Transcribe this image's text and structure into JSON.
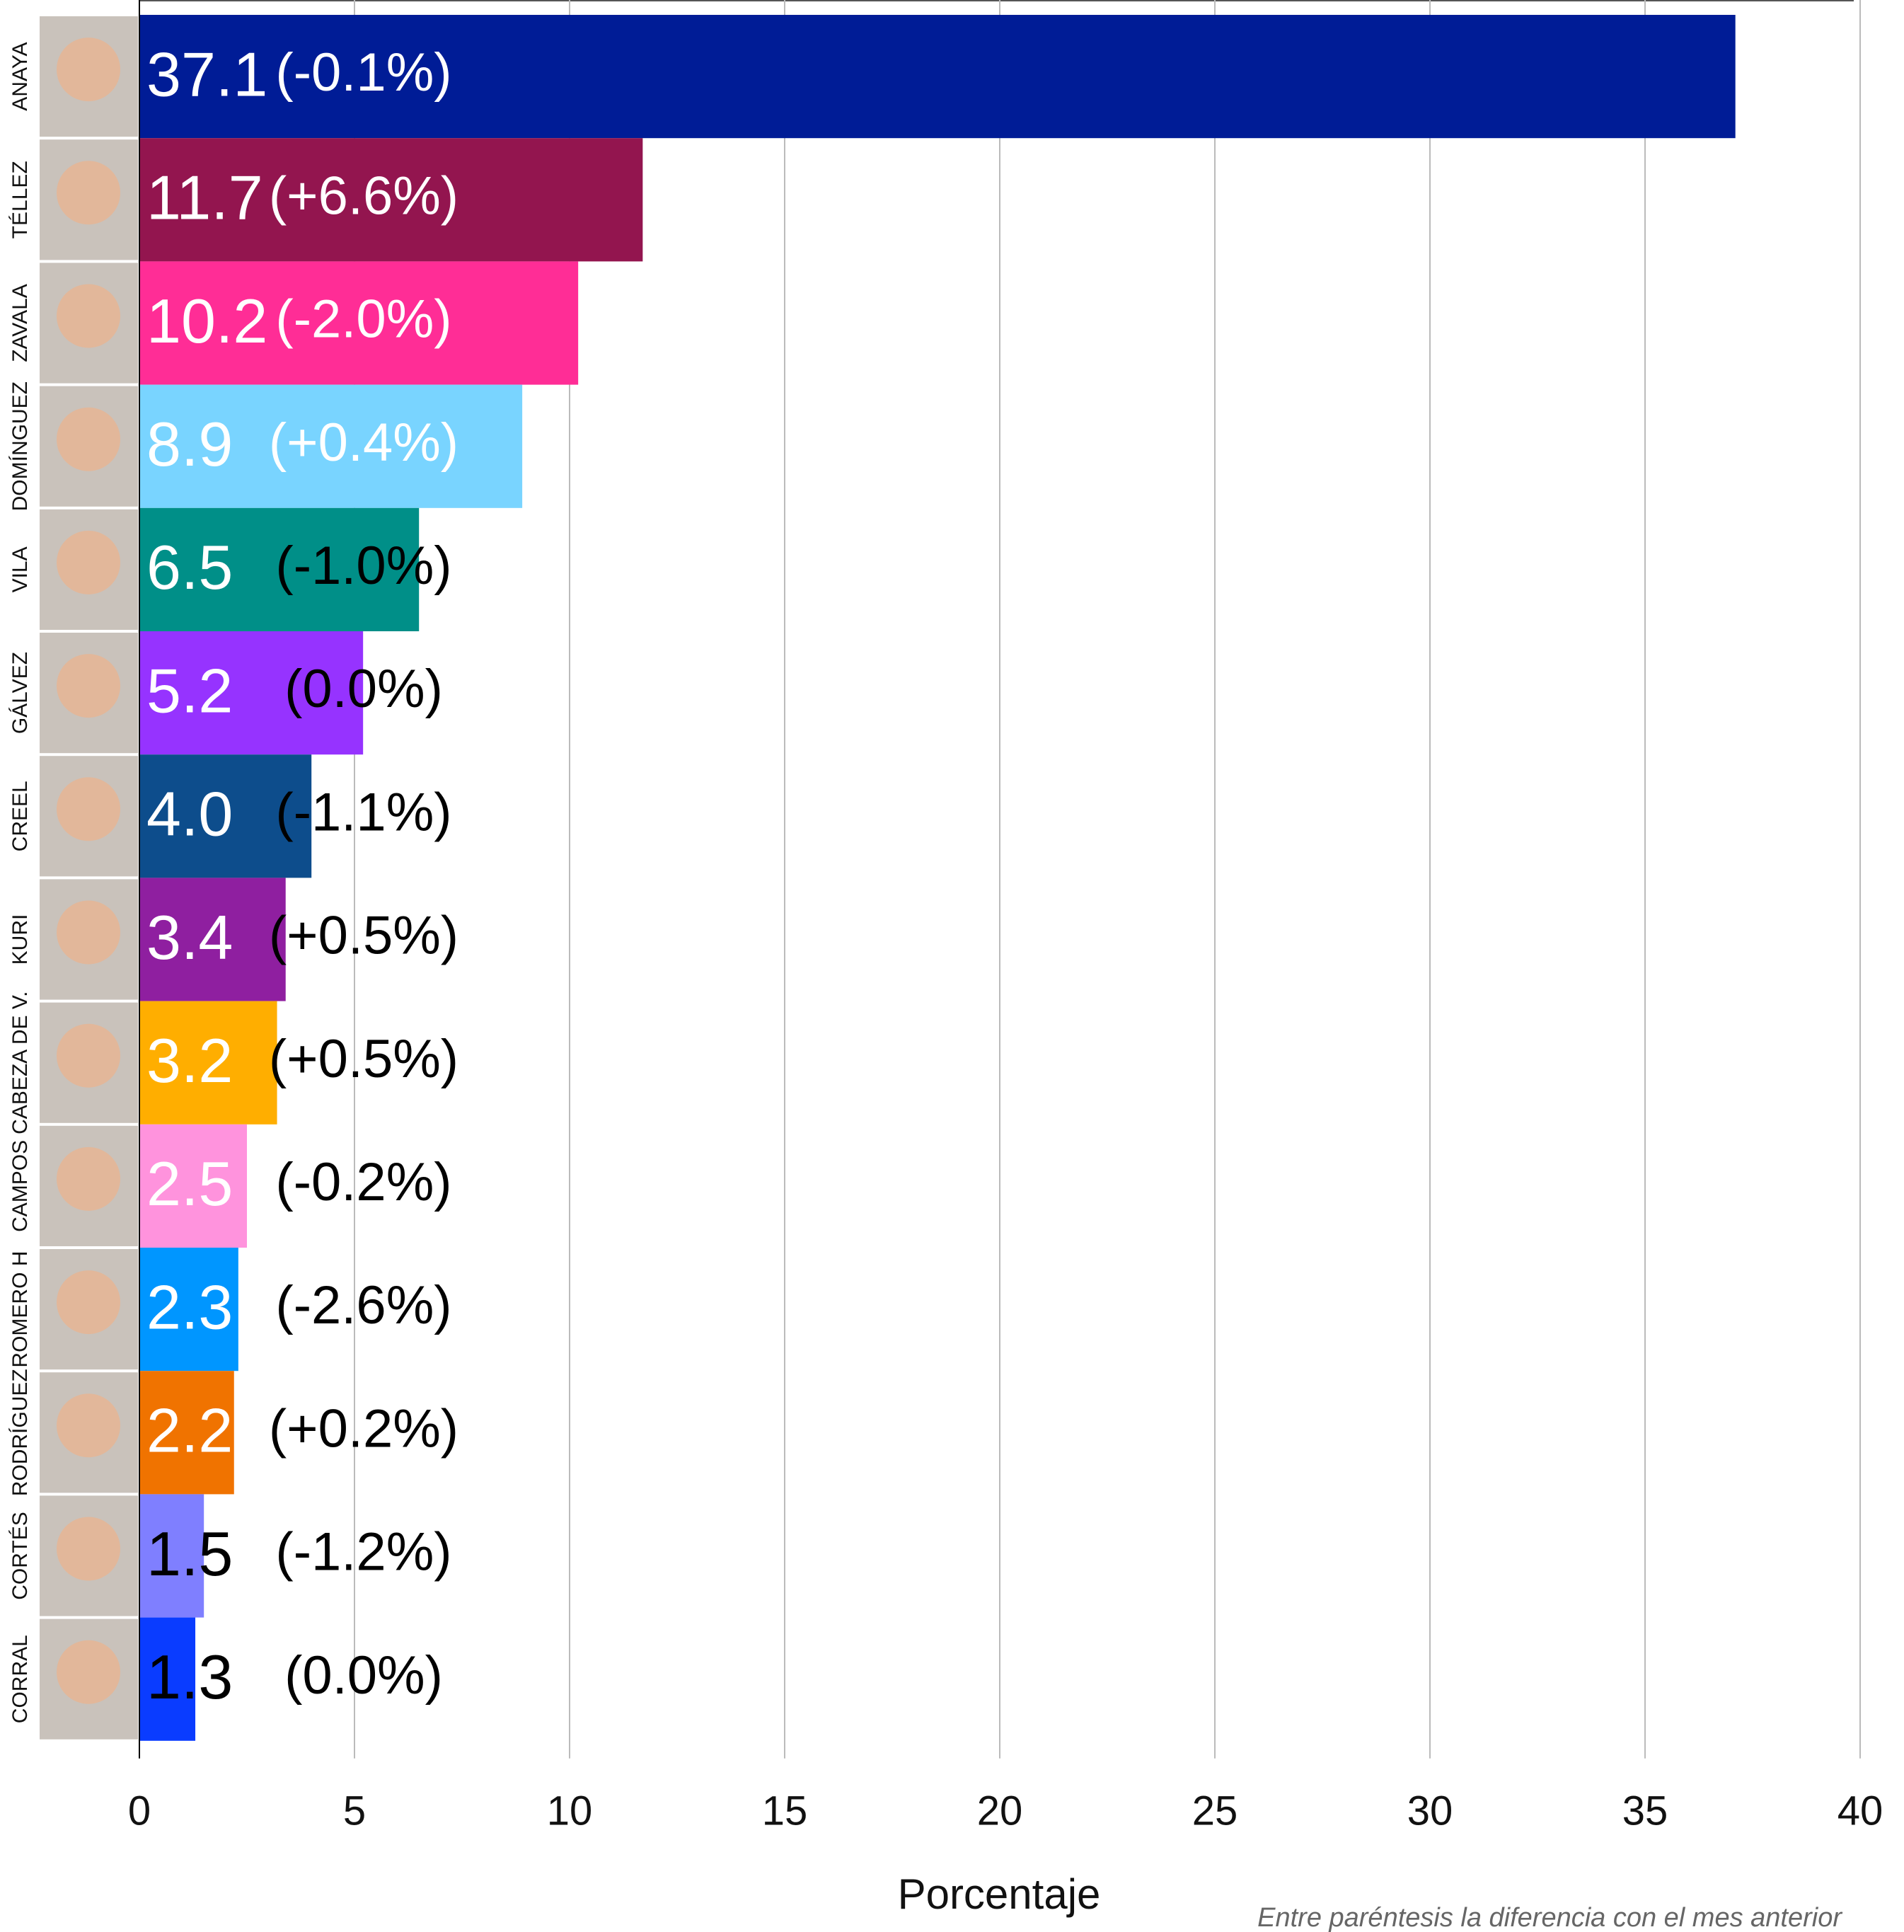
{
  "chart_data": {
    "type": "bar",
    "orientation": "horizontal",
    "x_label": "Porcentaje",
    "note": "Entre paréntesis la diferencia con el mes anterior",
    "categories": [
      "ANAYA",
      "TÉLLEZ",
      "ZAVALA",
      "DOMÍNGUEZ",
      "VILA",
      "GÁLVEZ",
      "CREEL",
      "KURI",
      "CABEZA DE V.",
      "CAMPOS",
      "ROMERO H",
      "RODRÍGUEZ",
      "CORTÉS",
      "CORRAL"
    ],
    "values": [
      37.1,
      11.7,
      10.2,
      8.9,
      6.5,
      5.2,
      4.0,
      3.4,
      3.2,
      2.5,
      2.3,
      2.2,
      1.5,
      1.3
    ],
    "value_labels": [
      "37.1",
      "11.7",
      "10.2",
      "8.9",
      "6.5",
      "5.2",
      "4.0",
      "3.4",
      "3.2",
      "2.5",
      "2.3",
      "2.2",
      "1.5",
      "1.3"
    ],
    "changes": [
      "(-0.1%)",
      "(+6.6%)",
      "(-2.0%)",
      "(+0.4%)",
      "(-1.0%)",
      "(0.0%)",
      "(-1.1%)",
      "(+0.5%)",
      "(+0.5%)",
      "(-0.2%)",
      "(-2.6%)",
      "(+0.2%)",
      "(-1.2%)",
      "(0.0%)"
    ],
    "colors": [
      "#001c96",
      "#93154f",
      "#ff2d96",
      "#79d4ff",
      "#008f88",
      "#9633ff",
      "#0d4d8c",
      "#8f1fa0",
      "#ffae00",
      "#ff93dd",
      "#0096ff",
      "#f07300",
      "#7f7fff",
      "#0a3cff"
    ],
    "value_label_colors": [
      "#ffffff",
      "#ffffff",
      "#ffffff",
      "#ffffff",
      "#ffffff",
      "#ffffff",
      "#ffffff",
      "#ffffff",
      "#ffffff",
      "#ffffff",
      "#ffffff",
      "#ffffff",
      "#000000",
      "#000000"
    ],
    "change_label_colors": [
      "#ffffff",
      "#ffffff",
      "#ffffff",
      "#ffffff",
      "#000000",
      "#000000",
      "#000000",
      "#000000",
      "#000000",
      "#000000",
      "#000000",
      "#000000",
      "#000000",
      "#000000"
    ],
    "xlim": [
      0,
      40
    ],
    "xticks": [
      0,
      5,
      10,
      15,
      20,
      25,
      30,
      35,
      40
    ],
    "grid": true
  }
}
